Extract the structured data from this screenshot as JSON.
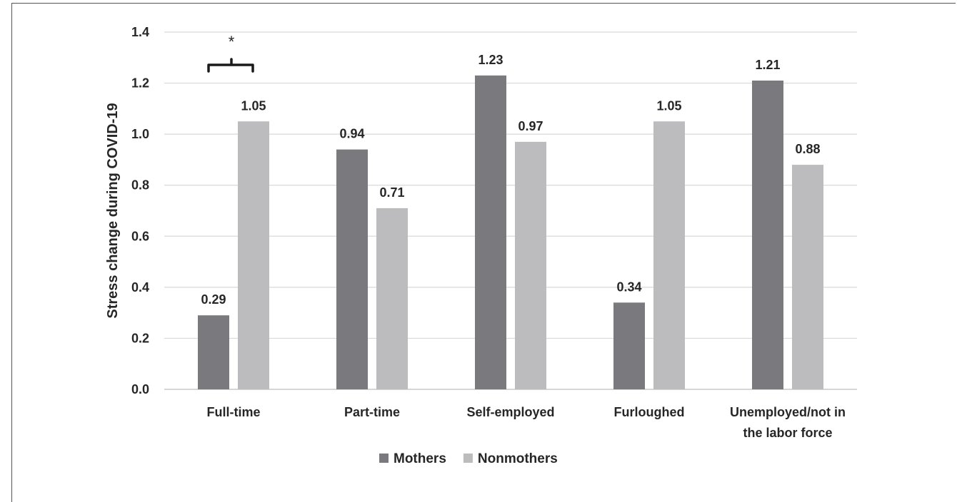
{
  "chart_data": {
    "type": "bar",
    "ylabel": "Stress change during COVID-19",
    "xlabel": "",
    "ylim": [
      0,
      1.4
    ],
    "yticks": [
      "0.0",
      "0.2",
      "0.4",
      "0.6",
      "0.8",
      "1.0",
      "1.2",
      "1.4"
    ],
    "categories": [
      [
        "Full-time"
      ],
      [
        "Part-time"
      ],
      [
        "Self-employed"
      ],
      [
        "Furloughed"
      ],
      [
        "Unemployed/not in",
        "the labor force"
      ]
    ],
    "series": [
      {
        "name": "Mothers",
        "color": "#7a7a7e",
        "values": [
          0.29,
          0.94,
          1.23,
          0.34,
          1.21
        ],
        "labels": [
          "0.29",
          "0.94",
          "1.23",
          "0.34",
          "1.21"
        ]
      },
      {
        "name": "Nonmothers",
        "color": "#bcbcbf",
        "values": [
          1.05,
          0.71,
          0.97,
          1.05,
          0.88
        ],
        "labels": [
          "1.05",
          "0.71",
          "0.97",
          "1.05",
          "0.88"
        ]
      }
    ],
    "grid": true,
    "legend_position": "bottom",
    "significance": {
      "category_index": 0,
      "symbol": "*"
    }
  }
}
